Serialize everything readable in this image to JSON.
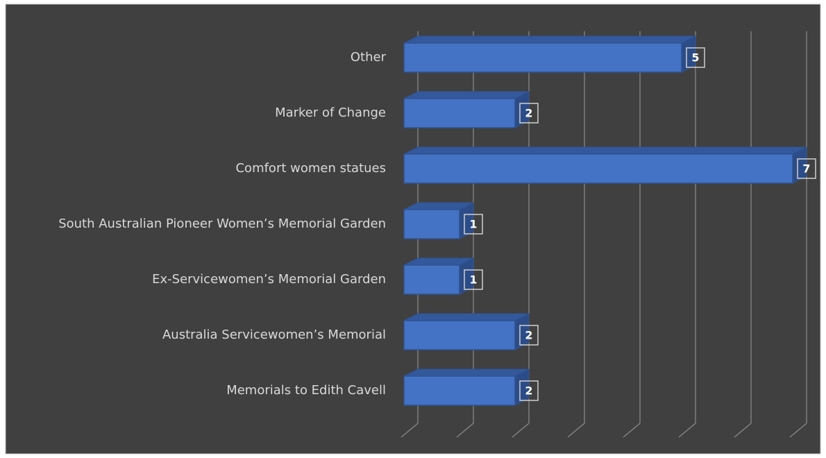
{
  "chart_data": {
    "type": "bar3d_horizontal",
    "categories": [
      "Other",
      "Marker of Change",
      "Comfort women statues",
      "South Australian Pioneer Women’s Memorial Garden",
      "Ex-Servicewomen’s Memorial Garden",
      "Australia Servicewomen’s Memorial",
      "Memorials to Edith Cavell"
    ],
    "values": [
      5,
      2,
      7,
      1,
      1,
      2,
      2
    ],
    "color": "#4472c4",
    "xlim": [
      0,
      7
    ],
    "xticks": [
      0,
      1,
      2,
      3,
      4,
      5,
      6,
      7
    ],
    "grid": true
  }
}
